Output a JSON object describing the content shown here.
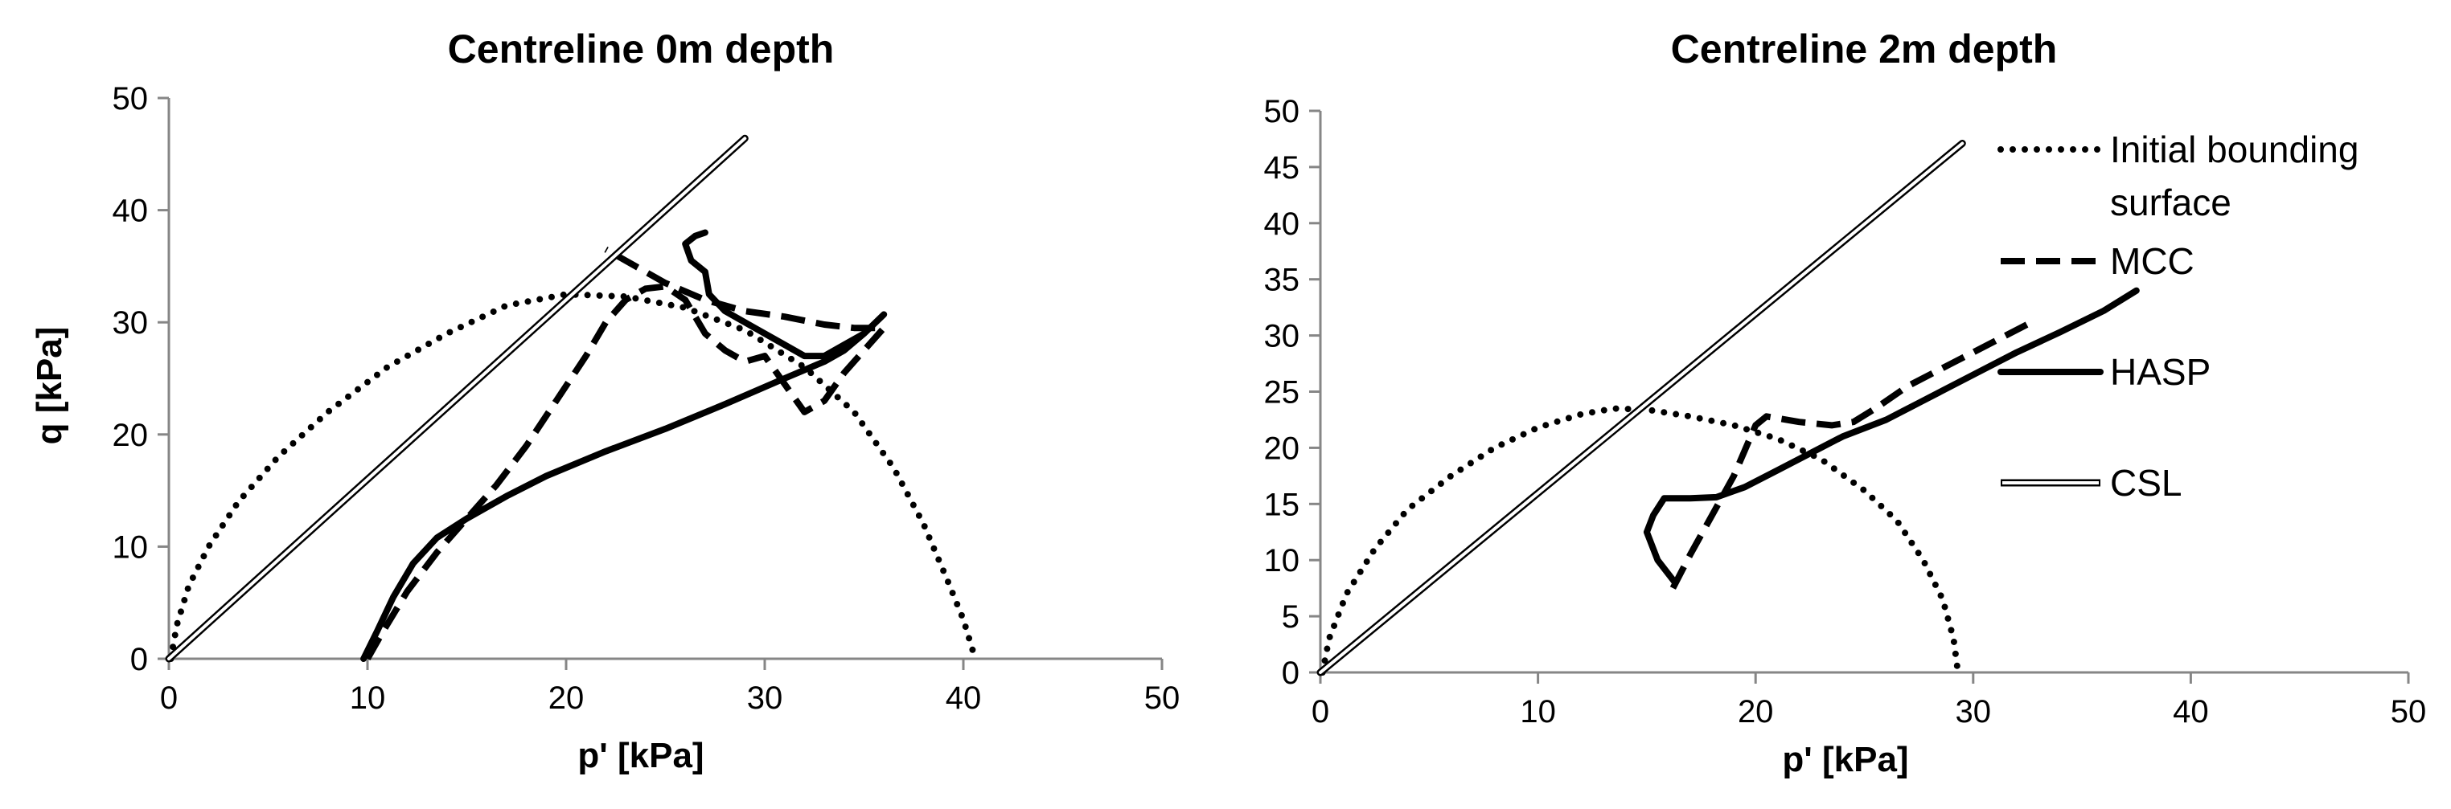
{
  "chart_data": [
    {
      "type": "line",
      "title": "Centreline 0m depth",
      "xlabel": "p' [kPa]",
      "ylabel": "q [kPa]",
      "xlim": [
        0,
        50
      ],
      "ylim": [
        0,
        50
      ],
      "xticks": [
        "0",
        "10",
        "20",
        "30",
        "40",
        "50"
      ],
      "yticks": [
        "0",
        "10",
        "20",
        "30",
        "40",
        "50"
      ],
      "grid": false,
      "legend": null,
      "series": [
        {
          "name": "Initial bounding surface",
          "style": "dotted",
          "points": [
            [
              0.1,
              0
            ],
            [
              0.4,
              3
            ],
            [
              1,
              6.5
            ],
            [
              2,
              10
            ],
            [
              3.5,
              14
            ],
            [
              5.5,
              18
            ],
            [
              8,
              22
            ],
            [
              11,
              26
            ],
            [
              14,
              29
            ],
            [
              17,
              31.5
            ],
            [
              20,
              32.5
            ],
            [
              23,
              32.3
            ],
            [
              26,
              31.3
            ],
            [
              29,
              29.3
            ],
            [
              32,
              26
            ],
            [
              34.5,
              22
            ],
            [
              36.5,
              17
            ],
            [
              38,
              12
            ],
            [
              39.2,
              7
            ],
            [
              40,
              3.5
            ],
            [
              40.6,
              0
            ]
          ]
        },
        {
          "name": "MCC",
          "style": "dashed",
          "points": [
            [
              10,
              0
            ],
            [
              10.8,
              2.5
            ],
            [
              12,
              6
            ],
            [
              13.5,
              9.5
            ],
            [
              15,
              12.5
            ],
            [
              16.5,
              15.5
            ],
            [
              18,
              19
            ],
            [
              19.5,
              23
            ],
            [
              21,
              27
            ],
            [
              22,
              30
            ],
            [
              23,
              32
            ],
            [
              24,
              33
            ],
            [
              25,
              33.2
            ],
            [
              26,
              32
            ],
            [
              27,
              29
            ],
            [
              28,
              27.5
            ],
            [
              29,
              26.5
            ],
            [
              30,
              27
            ],
            [
              31,
              24.5
            ],
            [
              32,
              22
            ],
            [
              33,
              23
            ],
            [
              34,
              25.5
            ],
            [
              35,
              27.5
            ],
            [
              36,
              29.5
            ],
            [
              34.5,
              29.5
            ],
            [
              33,
              29.8
            ],
            [
              31,
              30.5
            ],
            [
              29,
              31
            ],
            [
              27,
              32
            ],
            [
              25,
              33.5
            ],
            [
              23.5,
              35
            ],
            [
              22,
              36.5
            ]
          ]
        },
        {
          "name": "HASP",
          "style": "solid",
          "points": [
            [
              9.8,
              0
            ],
            [
              10.5,
              2.5
            ],
            [
              11.3,
              5.5
            ],
            [
              12.3,
              8.5
            ],
            [
              13.5,
              10.8
            ],
            [
              15,
              12.5
            ],
            [
              17,
              14.5
            ],
            [
              19,
              16.3
            ],
            [
              22,
              18.5
            ],
            [
              25,
              20.5
            ],
            [
              28,
              22.7
            ],
            [
              31,
              25
            ],
            [
              33,
              26.5
            ],
            [
              34,
              27.5
            ],
            [
              35,
              29
            ],
            [
              36,
              30.7
            ],
            [
              35,
              29
            ],
            [
              34,
              28
            ],
            [
              33,
              27
            ],
            [
              32,
              27
            ],
            [
              31,
              28
            ],
            [
              29.5,
              29.5
            ],
            [
              28,
              31
            ],
            [
              27.2,
              32.5
            ],
            [
              27,
              34.5
            ],
            [
              26.3,
              35.5
            ],
            [
              26,
              37
            ],
            [
              26.5,
              37.7
            ],
            [
              27,
              38
            ]
          ]
        },
        {
          "name": "CSL",
          "style": "double",
          "points": [
            [
              0,
              0
            ],
            [
              29,
              46.4
            ]
          ]
        }
      ]
    },
    {
      "type": "line",
      "title": "Centreline 2m depth",
      "xlabel": "p' [kPa]",
      "ylabel": "",
      "xlim": [
        0,
        50
      ],
      "ylim": [
        0,
        50
      ],
      "xticks": [
        "0",
        "10",
        "20",
        "30",
        "40",
        "50"
      ],
      "yticks": [
        "0",
        "5",
        "10",
        "15",
        "20",
        "25",
        "30",
        "35",
        "40",
        "45",
        "50"
      ],
      "grid": false,
      "legend": "right",
      "legend_entries": [
        "Initial bounding surface",
        "MCC",
        "HASP",
        "CSL"
      ],
      "legend_lines": [
        [
          "Initial bounding",
          "surface"
        ],
        [
          "MCC"
        ],
        [
          "HASP"
        ],
        [
          "CSL"
        ]
      ],
      "series": [
        {
          "name": "Initial bounding surface",
          "style": "dotted",
          "points": [
            [
              0.1,
              0
            ],
            [
              0.4,
              3
            ],
            [
              1.2,
              7
            ],
            [
              2.5,
              11
            ],
            [
              4,
              14.5
            ],
            [
              6,
              17.5
            ],
            [
              8,
              20
            ],
            [
              10,
              21.8
            ],
            [
              12,
              23
            ],
            [
              13.5,
              23.5
            ],
            [
              15,
              23.4
            ],
            [
              17,
              22.8
            ],
            [
              19,
              22
            ],
            [
              21,
              20.8
            ],
            [
              23,
              19
            ],
            [
              25,
              16.2
            ],
            [
              26.5,
              13.5
            ],
            [
              27.7,
              10
            ],
            [
              28.6,
              6.5
            ],
            [
              29.1,
              3
            ],
            [
              29.3,
              0
            ]
          ]
        },
        {
          "name": "MCC",
          "style": "dashed",
          "points": [
            [
              16.2,
              7.5
            ],
            [
              17,
              10.5
            ],
            [
              18,
              14
            ],
            [
              19,
              17.5
            ],
            [
              20,
              22
            ],
            [
              20.5,
              22.8
            ],
            [
              22,
              22.3
            ],
            [
              23.5,
              22
            ],
            [
              24.5,
              22.3
            ],
            [
              25.5,
              23.5
            ],
            [
              27,
              25.5
            ],
            [
              29,
              27.5
            ],
            [
              31,
              29.5
            ],
            [
              32.5,
              31
            ]
          ]
        },
        {
          "name": "HASP",
          "style": "solid",
          "points": [
            [
              16.3,
              8
            ],
            [
              15.5,
              10
            ],
            [
              15,
              12.5
            ],
            [
              15.3,
              14
            ],
            [
              15.8,
              15.5
            ],
            [
              17,
              15.5
            ],
            [
              18.2,
              15.6
            ],
            [
              19.5,
              16.5
            ],
            [
              21,
              18
            ],
            [
              22.5,
              19.5
            ],
            [
              24,
              21
            ],
            [
              26,
              22.5
            ],
            [
              27.5,
              24
            ],
            [
              28.5,
              25
            ],
            [
              30,
              26.5
            ],
            [
              32,
              28.5
            ],
            [
              34,
              30.3
            ],
            [
              36,
              32.2
            ],
            [
              37.5,
              34
            ]
          ]
        },
        {
          "name": "CSL",
          "style": "double",
          "points": [
            [
              0,
              0
            ],
            [
              29.5,
              47.1
            ]
          ]
        }
      ]
    }
  ]
}
